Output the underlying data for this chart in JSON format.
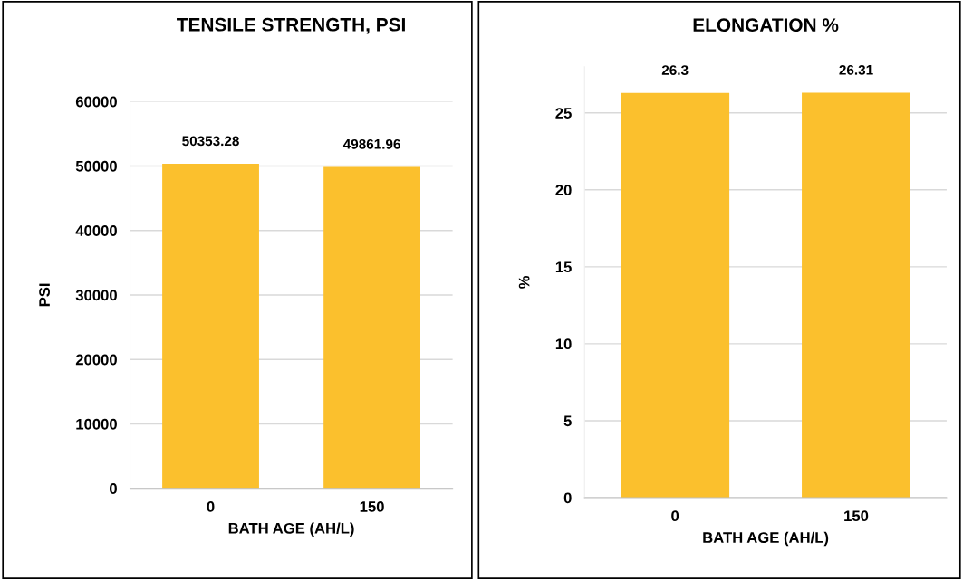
{
  "chart_data": [
    {
      "type": "bar",
      "title": "TENSILE STRENGTH, PSI",
      "xlabel": "BATH AGE (AH/L)",
      "ylabel": "PSI",
      "categories": [
        "0",
        "150"
      ],
      "series": [
        {
          "color": "#fbc02d",
          "values": [
            50353.28,
            49861.96
          ]
        }
      ],
      "ylim": [
        0,
        60000
      ],
      "yticks": [
        0,
        10000,
        20000,
        30000,
        40000,
        50000,
        60000
      ],
      "grid": "y",
      "data_labels": true
    },
    {
      "type": "bar",
      "title": "ELONGATION %",
      "xlabel": "BATH AGE (AH/L)",
      "ylabel": "%",
      "categories": [
        "0",
        "150"
      ],
      "series": [
        {
          "color": "#fbc02d",
          "values": [
            26.3,
            26.31
          ]
        }
      ],
      "ylim": [
        0,
        28
      ],
      "yticks": [
        0,
        5,
        10,
        15,
        20,
        25
      ],
      "grid": "y",
      "data_labels": true
    }
  ]
}
